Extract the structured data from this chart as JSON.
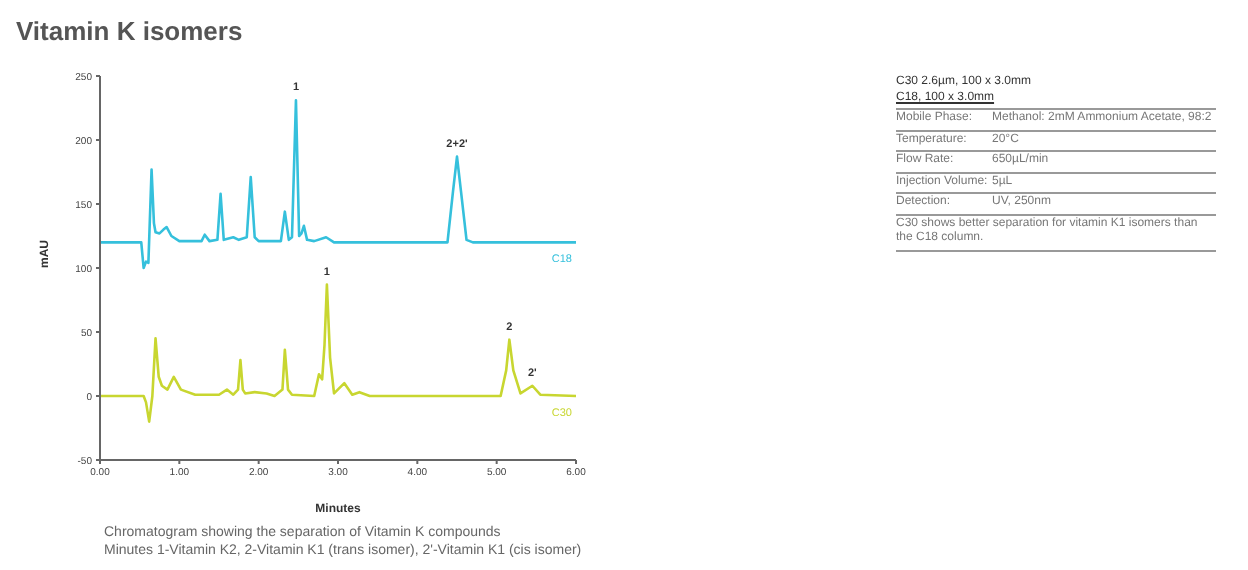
{
  "chart_data": {
    "type": "line",
    "title": "Vitamin K isomers",
    "xlabel": "Minutes",
    "ylabel": "mAU",
    "xlim": [
      0,
      6
    ],
    "xticks": [
      {
        "value": 0,
        "label": "0.00"
      },
      {
        "value": 1,
        "label": "1.00"
      },
      {
        "value": 2,
        "label": "2.00"
      },
      {
        "value": 3,
        "label": "3.00"
      },
      {
        "value": 4,
        "label": "4.00"
      },
      {
        "value": 5,
        "label": "5.00"
      },
      {
        "value": 6,
        "label": "6.00"
      }
    ],
    "ylim": [
      -50,
      250
    ],
    "yticks": [
      -50,
      0,
      50,
      100,
      150,
      200,
      250
    ],
    "grid": false,
    "legend": false,
    "marker": "none",
    "line_style": "solid",
    "series": [
      {
        "name": "C18",
        "color": "#35c0dc",
        "x": [
          0,
          0.52,
          0.55,
          0.58,
          0.61,
          0.65,
          0.68,
          0.7,
          0.75,
          0.8,
          0.84,
          0.9,
          1.0,
          1.28,
          1.32,
          1.38,
          1.48,
          1.52,
          1.56,
          1.62,
          1.68,
          1.75,
          1.85,
          1.9,
          1.95,
          2.0,
          2.28,
          2.33,
          2.38,
          2.42,
          2.47,
          2.51,
          2.54,
          2.57,
          2.61,
          2.7,
          2.85,
          2.95,
          4.38,
          4.45,
          4.5,
          4.55,
          4.62,
          4.7,
          6
        ],
        "values": [
          120,
          120,
          100,
          105,
          104,
          177,
          135,
          128,
          127,
          130,
          132,
          125,
          121,
          121,
          126,
          121,
          122,
          158,
          122,
          123,
          124,
          122,
          124,
          171,
          124,
          121,
          121,
          144,
          122,
          124,
          231,
          125,
          127,
          133,
          122,
          121,
          124,
          120,
          120,
          160,
          187,
          160,
          122,
          120,
          120
        ]
      },
      {
        "name": "C30",
        "color": "#c8d630",
        "x": [
          0,
          0.55,
          0.58,
          0.62,
          0.66,
          0.7,
          0.74,
          0.78,
          0.85,
          0.93,
          1.02,
          1.2,
          1.5,
          1.6,
          1.68,
          1.74,
          1.77,
          1.8,
          1.83,
          1.95,
          2.1,
          2.2,
          2.3,
          2.33,
          2.37,
          2.42,
          2.7,
          2.76,
          2.8,
          2.83,
          2.86,
          2.9,
          2.95,
          3.08,
          3.18,
          3.27,
          3.4,
          5.05,
          5.12,
          5.16,
          5.21,
          5.3,
          5.45,
          5.55,
          6
        ],
        "values": [
          0,
          0,
          -5,
          -20,
          0,
          45,
          15,
          8,
          5,
          15,
          5,
          1,
          1,
          5,
          1,
          5,
          28,
          5,
          2,
          3,
          2,
          0,
          5,
          36,
          5,
          1,
          0,
          17,
          13,
          40,
          87,
          30,
          2,
          10,
          1,
          3,
          0,
          0,
          20,
          44,
          20,
          2,
          8,
          1,
          0
        ]
      }
    ],
    "annotations": [
      {
        "text": "1",
        "x": 2.47,
        "y": 231
      },
      {
        "text": "2+2'",
        "x": 4.5,
        "y": 187
      },
      {
        "text": "1",
        "x": 2.86,
        "y": 87
      },
      {
        "text": "2",
        "x": 5.16,
        "y": 44
      },
      {
        "text": "2'",
        "x": 5.45,
        "y": 8
      },
      "C30 2.6µm, 100 x 3.0mm",
      "C18, 100 x 3.0mm",
      "Mobile Phase:\tMethanol: 2mM Ammonium Acetate, 98:2",
      "Temperature:\t20°C",
      "Flow Rate:\t650µL/min",
      "Injection Volume:\t5µL",
      "Detection:\tUV, 250nm",
      "C30 shows better separation for vitamin K1 isomers than the C18 column.",
      "Chromatogram showing the separation of Vitamin K compounds",
      "Minutes 1-Vitamin K2, 2-Vitamin K1 (trans isomer), 2'-Vitamin K1 (cis isomer)"
    ]
  }
}
